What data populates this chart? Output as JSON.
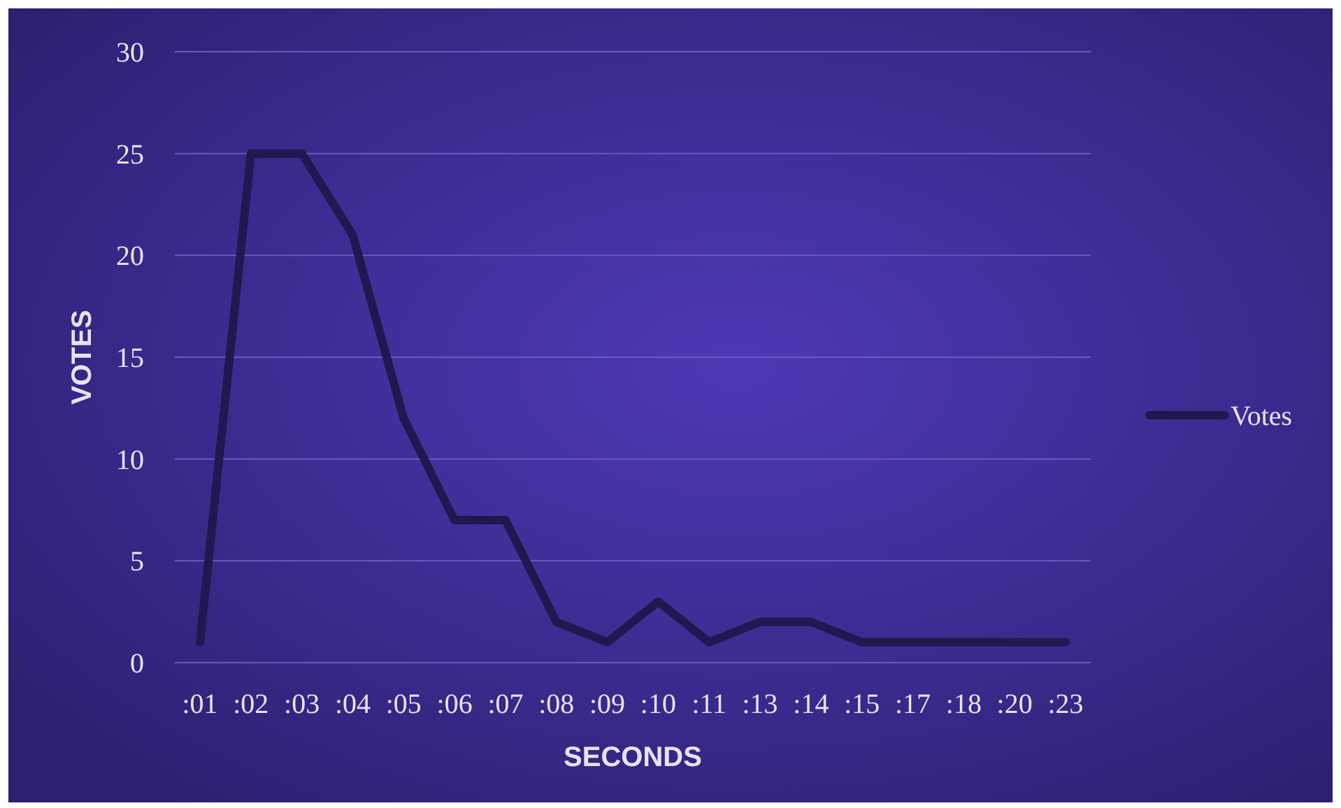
{
  "chart_data": {
    "type": "line",
    "xlabel": "SECONDS",
    "ylabel": "VOTES",
    "categories": [
      ":01",
      ":02",
      ":03",
      ":04",
      ":05",
      ":06",
      ":07",
      ":08",
      ":09",
      ":10",
      ":11",
      ":13",
      ":14",
      ":15",
      ":17",
      ":18",
      ":20",
      ":23"
    ],
    "series": [
      {
        "name": "Votes",
        "color": "#22174f",
        "values": [
          1,
          25,
          25,
          21,
          12,
          7,
          7,
          2,
          1,
          3,
          1,
          2,
          2,
          1,
          1,
          1,
          1,
          1
        ]
      }
    ],
    "ylim": [
      0,
      30
    ],
    "yticks": [
      0,
      5,
      10,
      15,
      20,
      25,
      30
    ],
    "grid": "y",
    "legend": "right",
    "marker": "none",
    "line_style": "solid"
  }
}
